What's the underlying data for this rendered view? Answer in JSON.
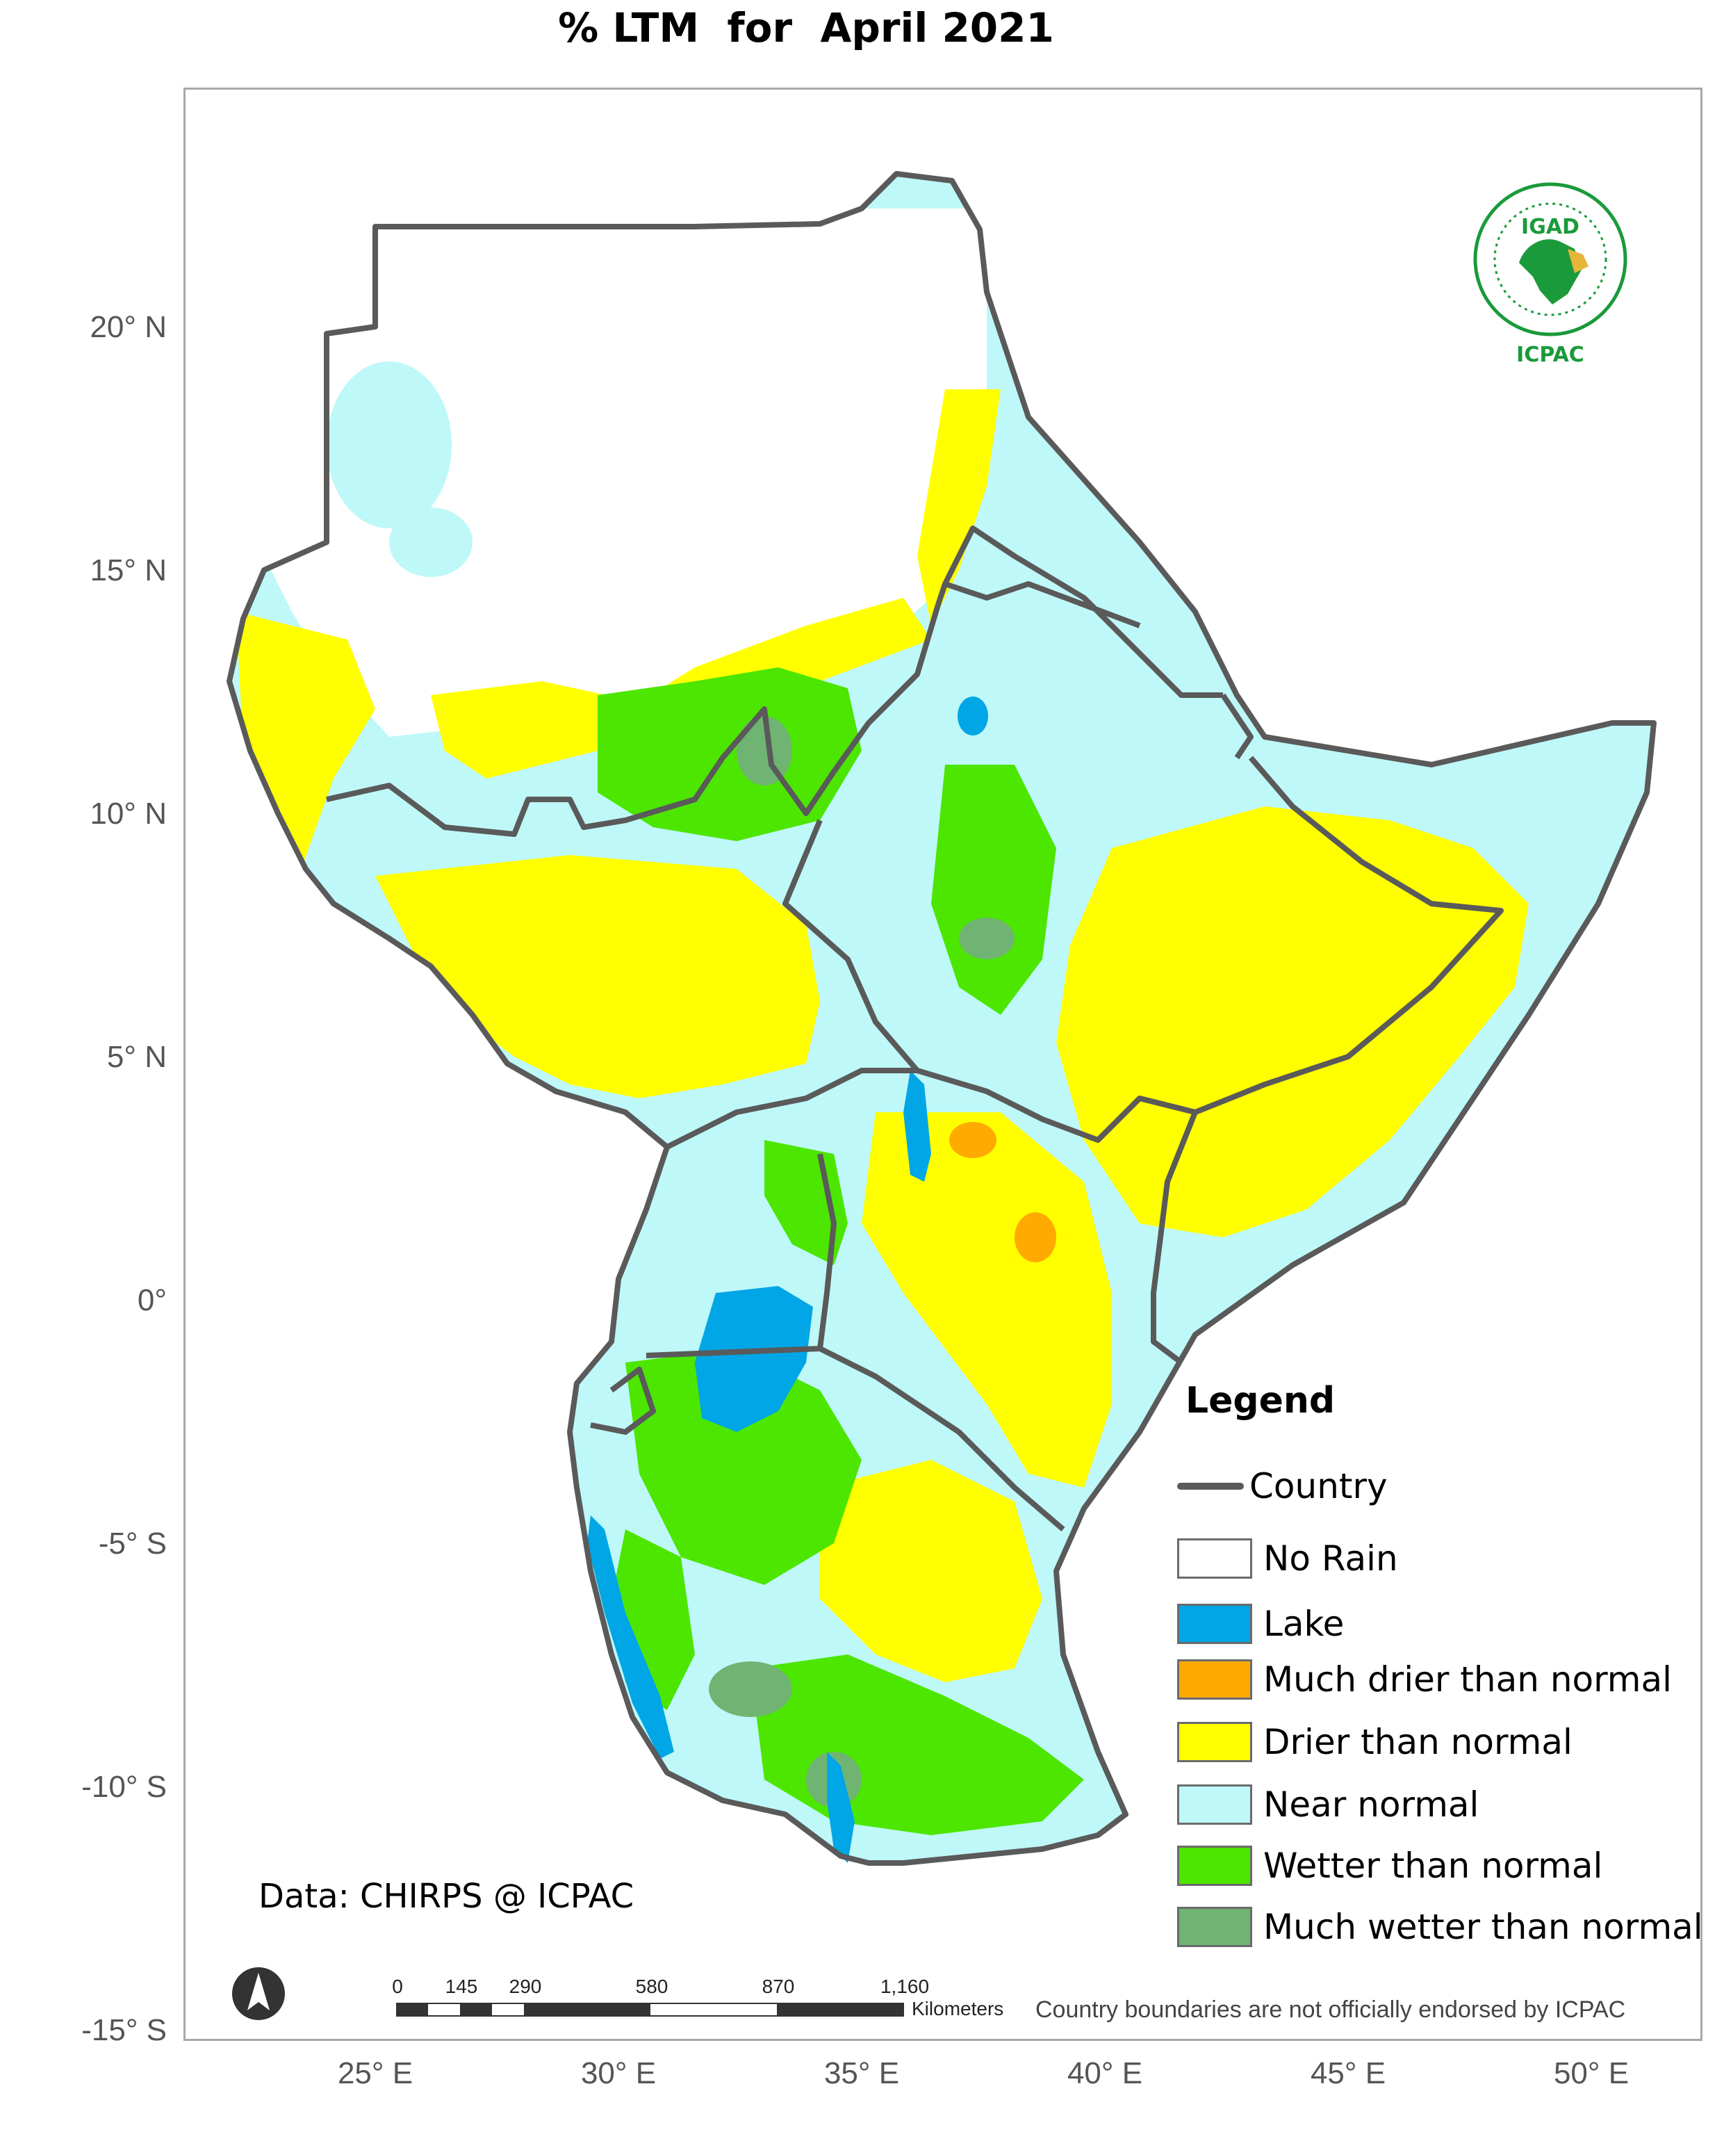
{
  "title": "% LTM  for  April 2021",
  "axes": {
    "y_labels": [
      "20° N",
      "15° N",
      "10° N",
      "5° N",
      "0°",
      "-5° S",
      "-10° S",
      "-15° S"
    ],
    "x_labels": [
      "25° E",
      "30° E",
      "35° E",
      "40° E",
      "45° E",
      "50° E"
    ]
  },
  "legend": {
    "title": "Legend",
    "country_label": "Country",
    "items": [
      {
        "label": "No Rain",
        "color": "#ffffff"
      },
      {
        "label": "Lake",
        "color": "#00a6e6"
      },
      {
        "label": "Much drier than normal",
        "color": "#ffaa00"
      },
      {
        "label": "Drier than normal",
        "color": "#ffff00"
      },
      {
        "label": "Near normal",
        "color": "#bff8f8"
      },
      {
        "label": "Wetter than normal",
        "color": "#4ce600"
      },
      {
        "label": "Much wetter than normal",
        "color": "#6fb472"
      }
    ]
  },
  "credit": "Data: CHIRPS @ ICPAC",
  "disclaimer": "Country boundaries are not officially endorsed by ICPAC",
  "scale_bar": {
    "labels": [
      "0",
      "145",
      "290",
      "580",
      "870",
      "1,160"
    ],
    "unit": "Kilometers"
  },
  "logo": {
    "org": "IGAD",
    "center": "ICPAC"
  },
  "north_arrow_icon": "north-arrow-icon",
  "colors": {
    "border": "#5a5a5a",
    "no_rain": "#ffffff",
    "lake": "#00a6e6",
    "much_drier": "#ffaa00",
    "drier": "#ffff00",
    "near_normal": "#bff8f8",
    "wetter": "#4ce600",
    "much_wetter": "#6fb472"
  }
}
